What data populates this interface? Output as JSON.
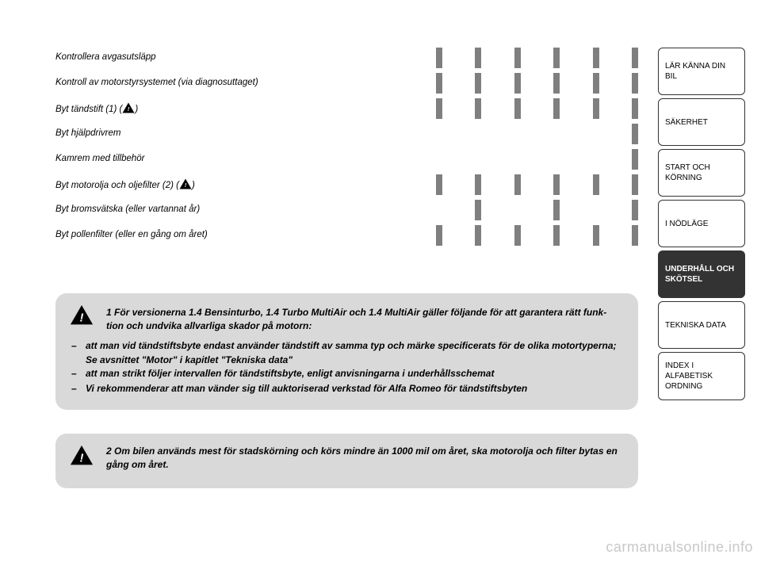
{
  "service_table": {
    "tick_color": "#7f7f7f",
    "column_count": 6,
    "rows": [
      {
        "label_parts": [
          "Kontrollera avgasutsläpp"
        ],
        "ticks": [
          1,
          1,
          1,
          1,
          1,
          1
        ]
      },
      {
        "label_parts": [
          "Kontroll av motorstyrsystemet (via diagnosuttaget)"
        ],
        "ticks": [
          1,
          1,
          1,
          1,
          1,
          1
        ]
      },
      {
        "label_parts": [
          "Byt tändstift (1) (",
          "warn",
          ")"
        ],
        "ticks": [
          1,
          1,
          1,
          1,
          1,
          1
        ]
      },
      {
        "label_parts": [
          "Byt hjälpdrivrem"
        ],
        "ticks": [
          0,
          0,
          0,
          0,
          0,
          1
        ]
      },
      {
        "label_parts": [
          "Kamrem med tillbehör"
        ],
        "ticks": [
          0,
          0,
          0,
          0,
          0,
          1
        ]
      },
      {
        "label_parts": [
          "Byt motorolja och oljefilter (2) (",
          "warn",
          ")"
        ],
        "ticks": [
          1,
          1,
          1,
          1,
          1,
          1
        ]
      },
      {
        "label_parts": [
          "Byt bromsvätska (eller vartannat år)"
        ],
        "ticks": [
          0,
          1,
          0,
          1,
          0,
          1
        ]
      },
      {
        "label_parts": [
          "Byt pollenfilter (eller en gång om året)"
        ],
        "ticks": [
          1,
          1,
          1,
          1,
          1,
          1
        ]
      }
    ]
  },
  "warning1": {
    "lead": "1 För versionerna 1.4 Bensinturbo, 1.4 Turbo MultiAir och 1.4 MultiAir gäller följande för att garantera rätt funk-tion och undvika allvarliga skador på motorn:",
    "items": [
      {
        "text": "att man vid tändstiftsbyte endast använder tändstift av samma typ och märke specificerats för de olika motortyperna;",
        "sub": "Se avsnittet \"Motor\" i kapitlet \"Tekniska data\""
      },
      {
        "text": "att man strikt följer intervallen för tändstiftsbyte, enligt anvisningarna i underhållsschemat"
      },
      {
        "text": "Vi rekommenderar att man vänder sig till auktoriserad verkstad för Alfa Romeo för tändstiftsbyten"
      }
    ]
  },
  "warning2": {
    "lead": "2 Om bilen används mest för stadskörning och körs mindre än 1000 mil om året, ska motorolja och filter bytas en gång om året."
  },
  "sidebar": {
    "items": [
      {
        "label": "LÄR KÄNNA DIN BIL",
        "active": false
      },
      {
        "label": "SÄKERHET",
        "active": false
      },
      {
        "label": "START OCH KÖRNING",
        "active": false
      },
      {
        "label": "I NÖDLÄGE",
        "active": false
      },
      {
        "label": "UNDERHÅLL OCH SKÖTSEL",
        "active": true
      },
      {
        "label": "TEKNISKA DATA",
        "active": false
      },
      {
        "label": "INDEX I ALFABETISK ORDNING",
        "active": false
      }
    ]
  },
  "colors": {
    "box_bg": "#d9d9d9",
    "sidebar_border": "#333333",
    "active_bg": "#333333",
    "watermark": "#c8c8c8"
  },
  "watermark": "carmanualsonline.info"
}
